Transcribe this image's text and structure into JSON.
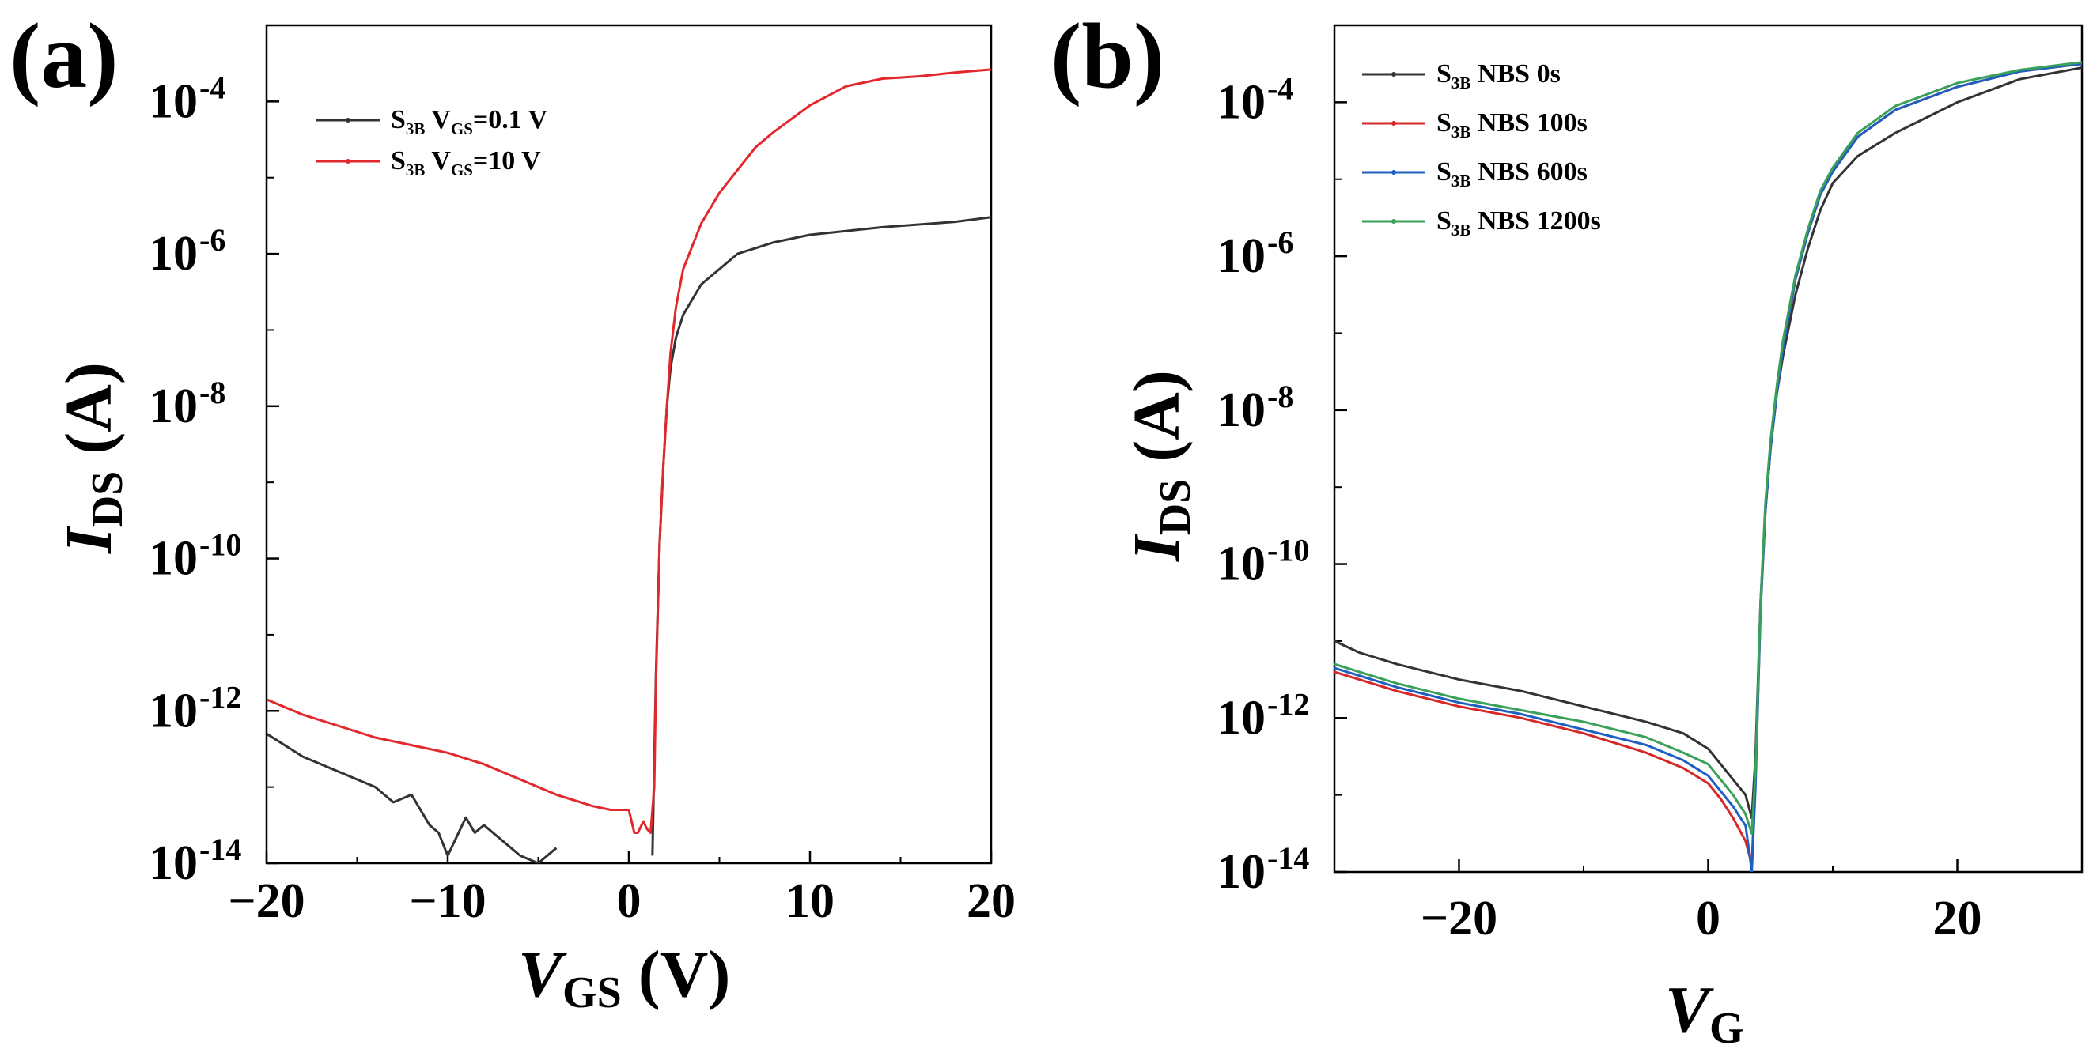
{
  "figure": {
    "panels": [
      {
        "panel_label": "(a)",
        "xlabel_main": "V",
        "xlabel_sub": "GS",
        "xlabel_unit": " (V)",
        "ylabel_main": "I",
        "ylabel_sub": "DS",
        "ylabel_unit": " (A)",
        "legend": [
          {
            "prefix": "S",
            "sub": "3B",
            "text1": " V",
            "sub2": "GS",
            "text2": "=0.1 V"
          },
          {
            "prefix": "S",
            "sub": "3B",
            "text1": " V",
            "sub2": "GS",
            "text2": "=10 V"
          }
        ]
      },
      {
        "panel_label": "(b)",
        "xlabel_main": "V",
        "xlabel_sub": "G",
        "xlabel_unit": "",
        "ylabel_main": "I",
        "ylabel_sub": "DS",
        "ylabel_unit": " (A)",
        "legend": [
          {
            "prefix": "S",
            "sub": "3B",
            "text1": " NBS 0s",
            "sub2": "",
            "text2": ""
          },
          {
            "prefix": "S",
            "sub": "3B",
            "text1": " NBS 100s",
            "sub2": "",
            "text2": ""
          },
          {
            "prefix": "S",
            "sub": "3B",
            "text1": " NBS 600s",
            "sub2": "",
            "text2": ""
          },
          {
            "prefix": "S",
            "sub": "3B",
            "text1": " NBS 1200s",
            "sub2": "",
            "text2": ""
          }
        ]
      }
    ]
  },
  "chart_data": [
    {
      "type": "line",
      "title": "(a)",
      "xlabel": "V_GS (V)",
      "ylabel": "I_DS (A)",
      "xscale": "linear",
      "yscale": "log",
      "xlim": [
        -20,
        20
      ],
      "ylim": [
        1e-14,
        0.001
      ],
      "xticks": [
        {
          "label": "−20",
          "value": -20
        },
        {
          "label": "−10",
          "value": -10
        },
        {
          "label": "0",
          "value": 0
        },
        {
          "label": "10",
          "value": 10
        },
        {
          "label": "20",
          "value": 20
        }
      ],
      "yticks": [
        {
          "base": "10",
          "exp": "-4",
          "value": -4
        },
        {
          "base": "10",
          "exp": "-6",
          "value": -6
        },
        {
          "base": "10",
          "exp": "-8",
          "value": -8
        },
        {
          "base": "10",
          "exp": "-10",
          "value": -10
        },
        {
          "base": "10",
          "exp": "-12",
          "value": -12
        },
        {
          "base": "10",
          "exp": "-14",
          "value": -14
        }
      ],
      "legend_position": "top-left",
      "series": [
        {
          "name": "S3B VGS=0.1 V",
          "color": "#333333",
          "x": [
            -20,
            -18,
            -16,
            -14,
            -13,
            -12,
            -11,
            -10.5,
            -10,
            -9,
            -8.5,
            -8,
            -6,
            -5,
            -4,
            null,
            1.3,
            1.5,
            1.7,
            1.9,
            2.1,
            2.3,
            2.6,
            3,
            3.5,
            4,
            5,
            6,
            8,
            10,
            14,
            18,
            20
          ],
          "log_y": [
            -12.3,
            -12.6,
            -12.8,
            -13.0,
            -13.2,
            -13.1,
            -13.5,
            -13.6,
            -13.9,
            -13.4,
            -13.6,
            -13.5,
            -13.9,
            -14.0,
            -13.8,
            null,
            -13.9,
            -11.5,
            -9.8,
            -8.8,
            -8.0,
            -7.5,
            -7.1,
            -6.8,
            -6.6,
            -6.4,
            -6.2,
            -6.0,
            -5.85,
            -5.75,
            -5.65,
            -5.58,
            -5.52
          ]
        },
        {
          "name": "S3B VGS=10 V",
          "color": "#e2282c",
          "x": [
            -20,
            -18,
            -16,
            -14,
            -12,
            -10,
            -8,
            -6,
            -4,
            -2,
            -1,
            0,
            0.3,
            0.5,
            0.8,
            1.0,
            1.2,
            1.4,
            1.5,
            1.7,
            1.9,
            2.1,
            2.3,
            2.6,
            3,
            3.5,
            4,
            5,
            6,
            7,
            8,
            10,
            12,
            14,
            16,
            18,
            20
          ],
          "log_y": [
            -11.85,
            -12.05,
            -12.2,
            -12.35,
            -12.45,
            -12.55,
            -12.7,
            -12.9,
            -13.1,
            -13.25,
            -13.3,
            -13.3,
            -13.6,
            -13.6,
            -13.45,
            -13.55,
            -13.6,
            -13.0,
            -11.6,
            -9.8,
            -8.8,
            -8.0,
            -7.3,
            -6.7,
            -6.2,
            -5.9,
            -5.6,
            -5.2,
            -4.9,
            -4.6,
            -4.4,
            -4.05,
            -3.8,
            -3.7,
            -3.67,
            -3.62,
            -3.58
          ]
        }
      ]
    },
    {
      "type": "line",
      "title": "(b)",
      "xlabel": "V_G",
      "ylabel": "I_DS (A)",
      "xscale": "linear",
      "yscale": "log",
      "xlim": [
        -30,
        30
      ],
      "ylim": [
        1e-14,
        0.001
      ],
      "xticks": [
        {
          "label": "−20",
          "value": -20
        },
        {
          "label": "0",
          "value": 0
        },
        {
          "label": "20",
          "value": 20
        }
      ],
      "yticks": [
        {
          "base": "10",
          "exp": "-4",
          "value": -4
        },
        {
          "base": "10",
          "exp": "-6",
          "value": -6
        },
        {
          "base": "10",
          "exp": "-8",
          "value": -8
        },
        {
          "base": "10",
          "exp": "-10",
          "value": -10
        },
        {
          "base": "10",
          "exp": "-12",
          "value": -12
        },
        {
          "base": "10",
          "exp": "-14",
          "value": -14
        }
      ],
      "legend_position": "top-left",
      "series": [
        {
          "name": "S3B NBS 0s",
          "color": "#333333",
          "x": [
            -30,
            -28,
            -25,
            -20,
            -15,
            -10,
            -5,
            -2,
            0,
            1,
            2,
            3,
            3.5,
            3.8,
            4.2,
            4.6,
            5,
            5.5,
            6,
            7,
            8,
            9,
            10,
            12,
            15,
            20,
            25,
            30
          ],
          "log_y": [
            -11.0,
            -11.15,
            -11.3,
            -11.5,
            -11.65,
            -11.85,
            -12.05,
            -12.2,
            -12.4,
            -12.6,
            -12.8,
            -13.0,
            -13.3,
            -12.5,
            -10.5,
            -9.3,
            -8.5,
            -7.8,
            -7.3,
            -6.5,
            -5.9,
            -5.4,
            -5.05,
            -4.7,
            -4.4,
            -4.0,
            -3.7,
            -3.55
          ]
        },
        {
          "name": "S3B NBS 100s",
          "color": "#d62828",
          "x": [
            -30,
            -28,
            -25,
            -20,
            -15,
            -10,
            -5,
            -2,
            0,
            1,
            2,
            3,
            3.5,
            3.8,
            4.2,
            4.6,
            5,
            5.5,
            6,
            7,
            8,
            9,
            10,
            12,
            15,
            20,
            25,
            30
          ],
          "log_y": [
            -11.4,
            -11.5,
            -11.65,
            -11.85,
            -12.0,
            -12.2,
            -12.45,
            -12.65,
            -12.85,
            -13.05,
            -13.3,
            -13.6,
            -13.9,
            -12.8,
            -10.6,
            -9.3,
            -8.5,
            -7.8,
            -7.2,
            -6.3,
            -5.7,
            -5.2,
            -4.9,
            -4.45,
            -4.1,
            -3.8,
            -3.6,
            -3.5
          ]
        },
        {
          "name": "S3B NBS 600s",
          "color": "#1f5fbf",
          "x": [
            -30,
            -28,
            -25,
            -20,
            -15,
            -10,
            -5,
            -2,
            0,
            1,
            2,
            3,
            3.3,
            3.5,
            3.8,
            4.2,
            4.6,
            5,
            5.5,
            6,
            7,
            8,
            9,
            10,
            12,
            15,
            20,
            25,
            30
          ],
          "log_y": [
            -11.35,
            -11.45,
            -11.6,
            -11.8,
            -11.95,
            -12.15,
            -12.35,
            -12.55,
            -12.75,
            -12.95,
            -13.15,
            -13.4,
            -13.75,
            -14.0,
            -12.9,
            -10.6,
            -9.3,
            -8.5,
            -7.8,
            -7.2,
            -6.3,
            -5.7,
            -5.2,
            -4.9,
            -4.45,
            -4.1,
            -3.8,
            -3.6,
            -3.5
          ]
        },
        {
          "name": "S3B NBS 1200s",
          "color": "#3aa05a",
          "x": [
            -30,
            -28,
            -25,
            -20,
            -15,
            -10,
            -5,
            -2,
            0,
            1,
            2,
            3,
            3.5,
            3.8,
            4.2,
            4.6,
            5,
            5.5,
            6,
            7,
            8,
            9,
            10,
            12,
            15,
            20,
            25,
            30
          ],
          "log_y": [
            -11.3,
            -11.4,
            -11.55,
            -11.75,
            -11.9,
            -12.05,
            -12.25,
            -12.45,
            -12.6,
            -12.8,
            -13.0,
            -13.25,
            -13.5,
            -12.7,
            -10.5,
            -9.2,
            -8.4,
            -7.7,
            -7.1,
            -6.25,
            -5.65,
            -5.15,
            -4.85,
            -4.4,
            -4.05,
            -3.75,
            -3.58,
            -3.48
          ]
        }
      ]
    }
  ]
}
